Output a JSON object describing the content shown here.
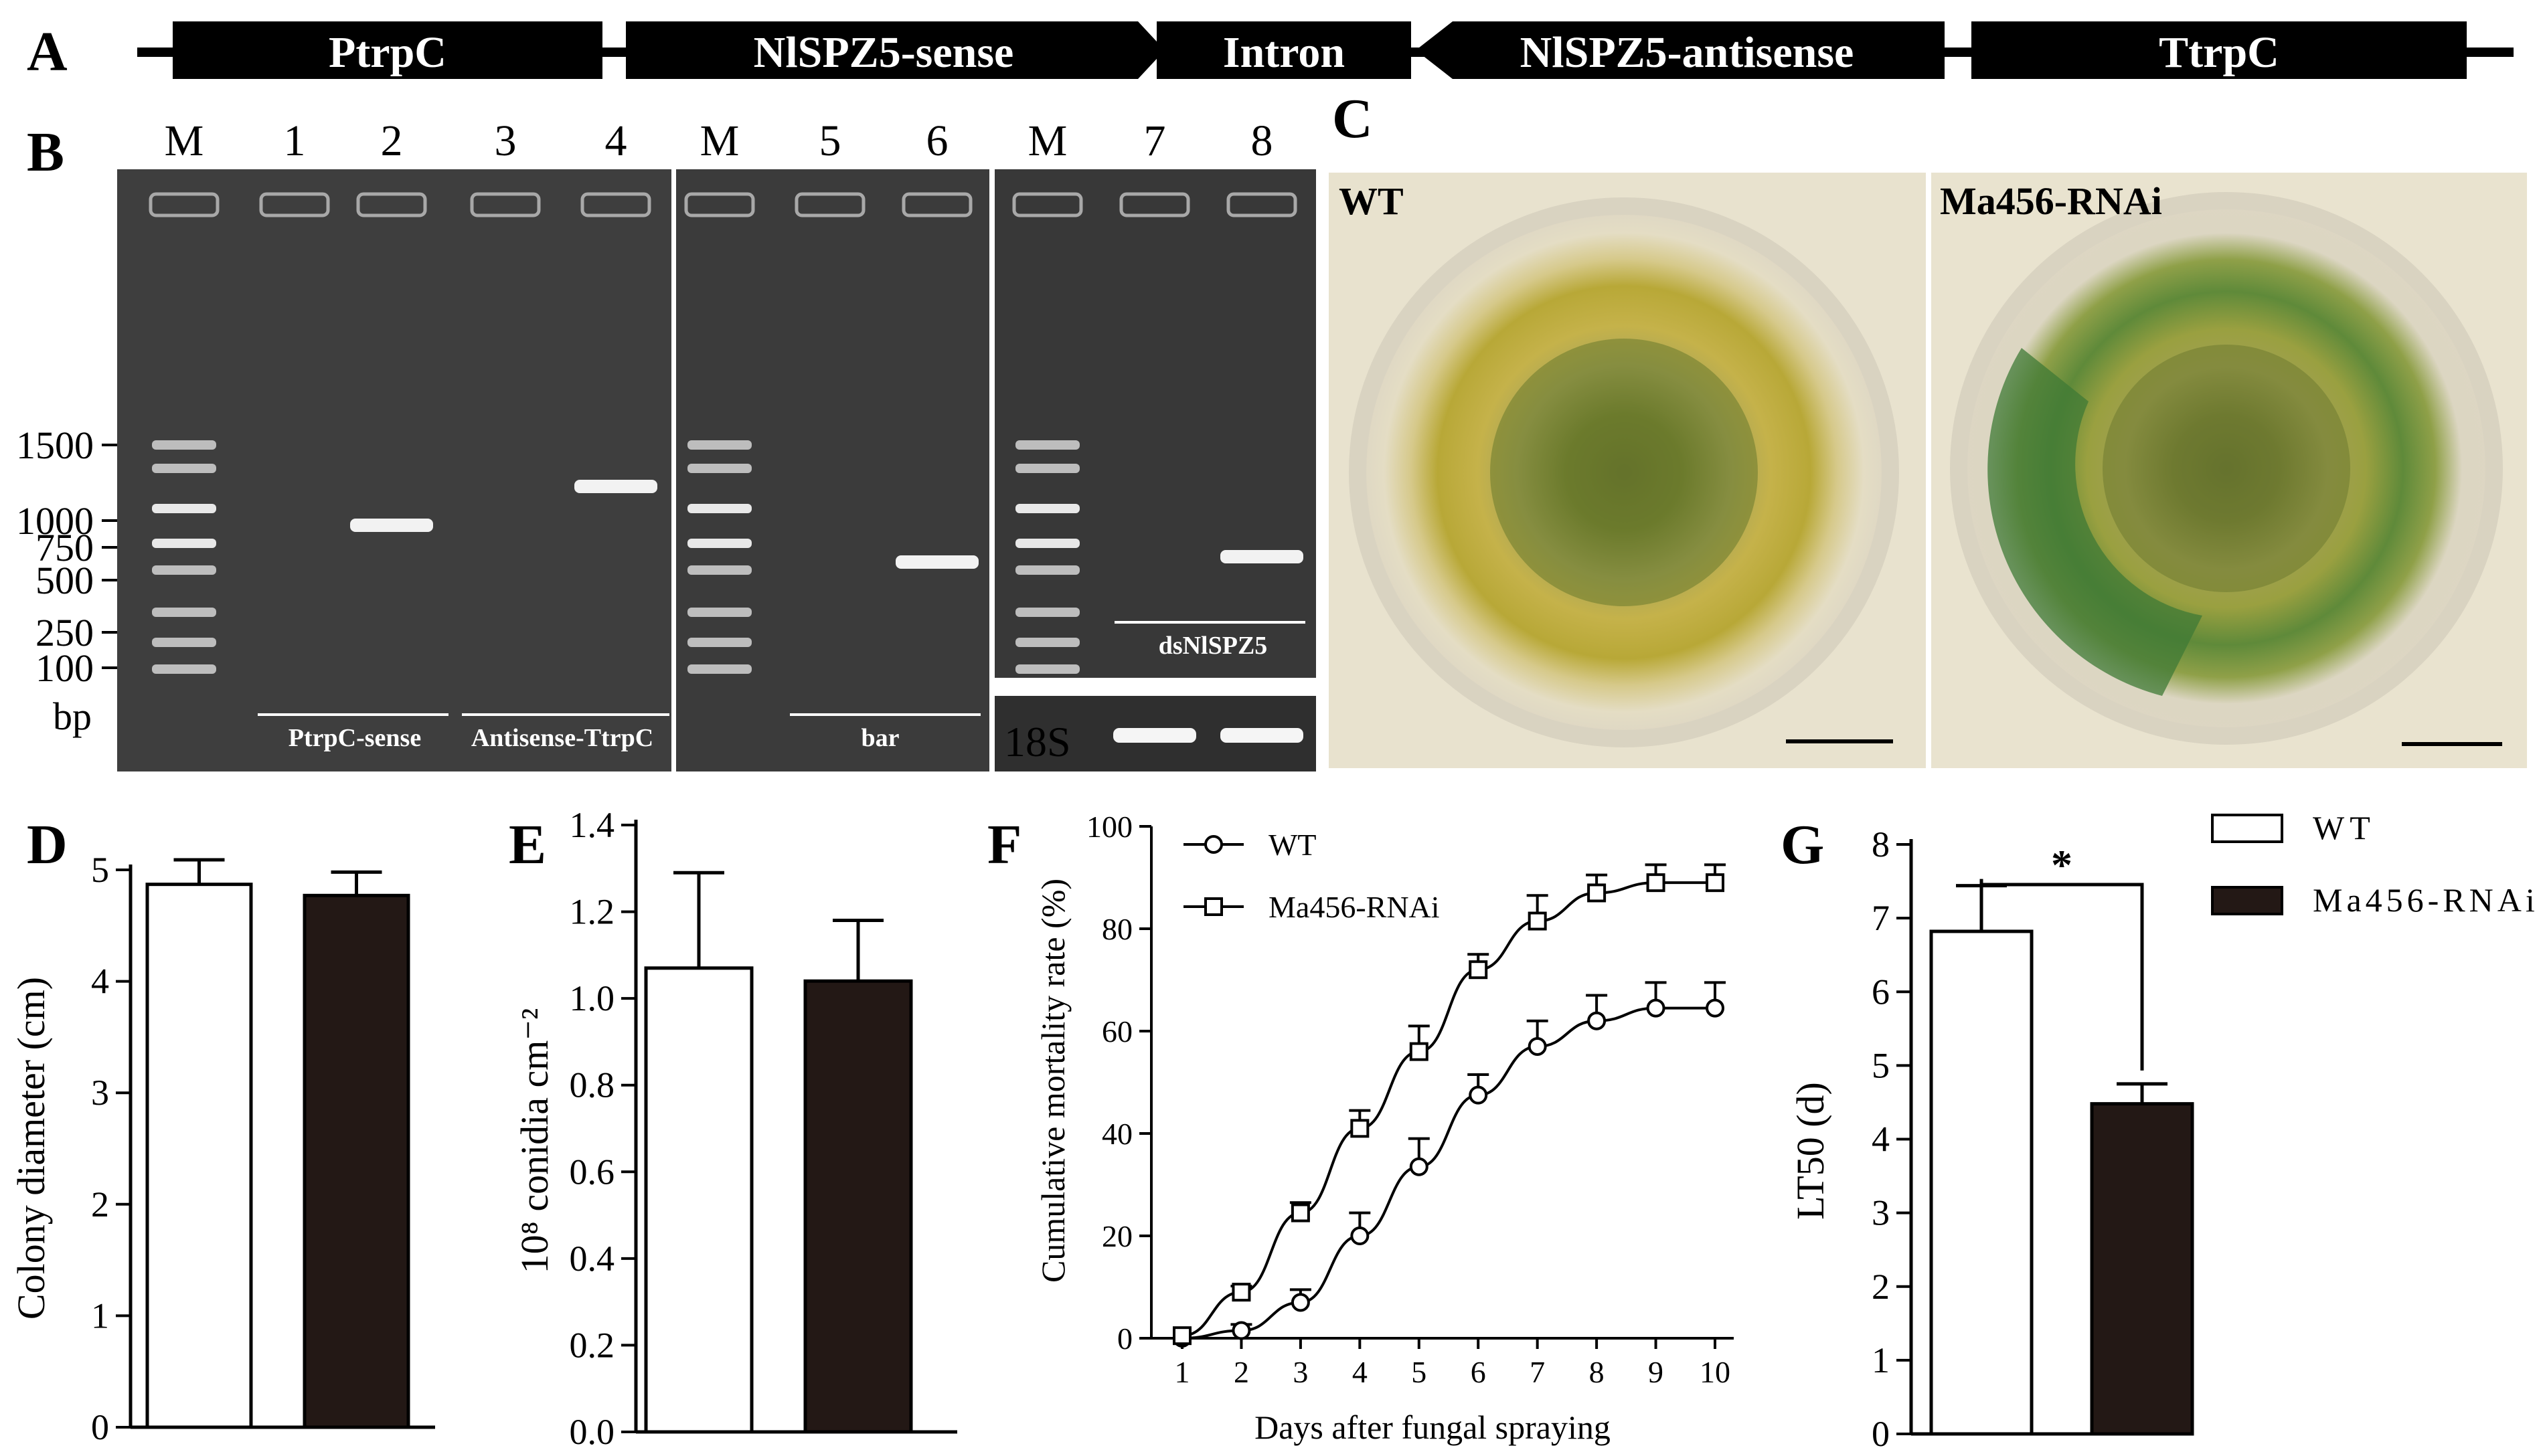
{
  "panel_letters": {
    "A": "A",
    "B": "B",
    "C": "C",
    "D": "D",
    "E": "E",
    "F": "F",
    "G": "G"
  },
  "construct": {
    "segments": [
      "PtrpC",
      "NlSPZ5-sense",
      "Intron",
      "NlSPZ5-antisense",
      "TtrpC"
    ]
  },
  "gel": {
    "lane_labels": [
      "M",
      "1",
      "2",
      "3",
      "4",
      "M",
      "5",
      "6",
      "M",
      "7",
      "8"
    ],
    "ladder_labels": [
      "1500",
      "1000",
      "750",
      "500",
      "250",
      "100"
    ],
    "unit": "bp",
    "product_labels": [
      "PtrpC-sense",
      "Antisense-TtrpC",
      "bar",
      "dsNlSPZ5"
    ],
    "ref_label": "18S"
  },
  "colony": {
    "labels": [
      "WT",
      "Ma456-RNAi"
    ]
  },
  "legend": {
    "wt": "WT",
    "rnai": "Ma456-RNAi"
  },
  "significance": "*",
  "colors": {
    "wt": "#ffffff",
    "rnai": "#231815",
    "gel_bg": "#3f3f3f",
    "agar": "#e9e3cf"
  },
  "chart_data": [
    {
      "panel": "D",
      "type": "bar",
      "categories": [
        "WT",
        "Ma456-RNAi"
      ],
      "values": [
        4.87,
        4.77
      ],
      "errors": [
        0.22,
        0.21
      ],
      "ylabel": "Colony diameter (cm)",
      "ylim": [
        0,
        5
      ],
      "yticks": [
        "0",
        "1",
        "2",
        "3",
        "4",
        "5"
      ]
    },
    {
      "panel": "E",
      "type": "bar",
      "categories": [
        "WT",
        "Ma456-RNAi"
      ],
      "values": [
        1.07,
        1.04
      ],
      "errors": [
        0.22,
        0.14
      ],
      "ylabel": "10⁸ conidia cm⁻²",
      "ylim": [
        0,
        1.4
      ],
      "yticks": [
        "0.0",
        "0.2",
        "0.4",
        "0.6",
        "0.8",
        "1.0",
        "1.2",
        "1.4"
      ]
    },
    {
      "panel": "F",
      "type": "line",
      "x": [
        1,
        2,
        3,
        4,
        5,
        6,
        7,
        8,
        9,
        10
      ],
      "series": [
        {
          "name": "WT",
          "values": [
            0,
            1.5,
            7,
            20,
            33.5,
            47.5,
            57,
            62,
            64.5,
            64.5
          ],
          "errors": [
            1,
            1.2,
            2.5,
            4.5,
            5.5,
            4,
            5,
            5,
            5,
            5
          ]
        },
        {
          "name": "Ma456-RNAi",
          "values": [
            0.5,
            9,
            24.5,
            41,
            56,
            72,
            81.5,
            87,
            89,
            89
          ],
          "errors": [
            1,
            1.2,
            2,
            3.5,
            5,
            3,
            5,
            3.5,
            3.5,
            3.5
          ]
        }
      ],
      "xlabel": "Days after fungal spraying",
      "ylabel": "Cumulative mortality rate (%)",
      "ylim": [
        0,
        100
      ],
      "xticks": [
        "1",
        "2",
        "3",
        "4",
        "5",
        "6",
        "7",
        "8",
        "9",
        "10"
      ],
      "yticks": [
        "0",
        "20",
        "40",
        "60",
        "80",
        "100"
      ]
    },
    {
      "panel": "G",
      "type": "bar",
      "categories": [
        "WT",
        "Ma456-RNAi"
      ],
      "values": [
        6.82,
        4.48
      ],
      "errors": [
        0.62,
        0.27
      ],
      "ylabel": "LT50 (d)",
      "ylim": [
        0,
        8
      ],
      "yticks": [
        "0",
        "1",
        "2",
        "3",
        "4",
        "5",
        "6",
        "7",
        "8"
      ]
    }
  ]
}
